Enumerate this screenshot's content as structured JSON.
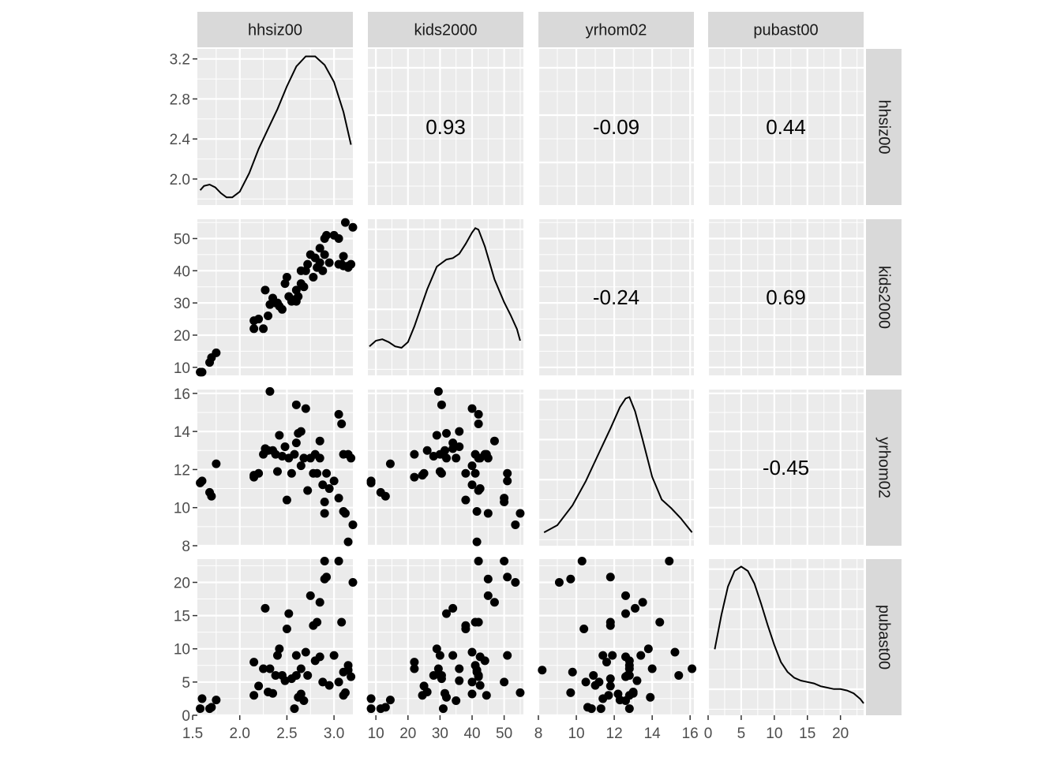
{
  "chart_data": {
    "type": "scatter",
    "layout": "pairs-matrix",
    "variables": [
      "hhsiz00",
      "kids2000",
      "yrhom02",
      "pubast00"
    ],
    "axes": {
      "hhsiz00": {
        "lim": [
          1.55,
          3.2
        ],
        "ticks": [
          1.5,
          2.0,
          2.5,
          3.0
        ],
        "tick_labels": [
          "1.5",
          "2.0",
          "2.5",
          "3.0"
        ]
      },
      "kids2000": {
        "lim": [
          7.5,
          56
        ],
        "ticks": [
          10,
          20,
          30,
          40,
          50
        ],
        "tick_labels": [
          "10",
          "20",
          "30",
          "40",
          "50"
        ]
      },
      "yrhom02": {
        "lim": [
          8,
          16.2
        ],
        "ticks": [
          8,
          10,
          12,
          14,
          16
        ],
        "tick_labels": [
          "8",
          "10",
          "12",
          "14",
          "16"
        ]
      },
      "pubast00": {
        "lim": [
          0,
          23.5
        ],
        "ticks": [
          0,
          5,
          10,
          15,
          20
        ],
        "tick_labels": [
          "0",
          "5",
          "10",
          "15",
          "20"
        ]
      }
    },
    "diag_y_axis": {
      "lim": [
        1.74,
        3.3
      ],
      "ticks": [
        2.0,
        2.4,
        2.8,
        3.2
      ],
      "tick_labels": [
        "2.0",
        "2.4",
        "2.8",
        "3.2"
      ]
    },
    "correlations": [
      {
        "row": "hhsiz00",
        "col": "kids2000",
        "label": "0.93"
      },
      {
        "row": "hhsiz00",
        "col": "yrhom02",
        "label": "-0.09"
      },
      {
        "row": "hhsiz00",
        "col": "pubast00",
        "label": "0.44"
      },
      {
        "row": "kids2000",
        "col": "yrhom02",
        "label": "-0.24"
      },
      {
        "row": "kids2000",
        "col": "pubast00",
        "label": "0.69"
      },
      {
        "row": "yrhom02",
        "col": "pubast00",
        "label": "-0.45"
      }
    ],
    "densities": {
      "hhsiz00": [
        [
          1.58,
          0.06
        ],
        [
          1.62,
          0.09
        ],
        [
          1.68,
          0.1
        ],
        [
          1.74,
          0.08
        ],
        [
          1.8,
          0.04
        ],
        [
          1.86,
          0.01
        ],
        [
          1.92,
          0.01
        ],
        [
          2.0,
          0.05
        ],
        [
          2.1,
          0.18
        ],
        [
          2.2,
          0.35
        ],
        [
          2.3,
          0.49
        ],
        [
          2.4,
          0.63
        ],
        [
          2.5,
          0.79
        ],
        [
          2.6,
          0.93
        ],
        [
          2.7,
          1.0
        ],
        [
          2.8,
          1.0
        ],
        [
          2.9,
          0.94
        ],
        [
          3.0,
          0.82
        ],
        [
          3.1,
          0.61
        ],
        [
          3.18,
          0.38
        ]
      ],
      "kids2000": [
        [
          8,
          0.16
        ],
        [
          10,
          0.2
        ],
        [
          12,
          0.21
        ],
        [
          14,
          0.19
        ],
        [
          16,
          0.16
        ],
        [
          18,
          0.15
        ],
        [
          20,
          0.19
        ],
        [
          22,
          0.3
        ],
        [
          26,
          0.56
        ],
        [
          29,
          0.72
        ],
        [
          32,
          0.77
        ],
        [
          34,
          0.78
        ],
        [
          36,
          0.81
        ],
        [
          38,
          0.88
        ],
        [
          40,
          0.96
        ],
        [
          41,
          0.99
        ],
        [
          42,
          0.98
        ],
        [
          44,
          0.86
        ],
        [
          47,
          0.63
        ],
        [
          50,
          0.47
        ],
        [
          52,
          0.38
        ],
        [
          54,
          0.28
        ],
        [
          55,
          0.2
        ]
      ],
      "yrhom02": [
        [
          8.3,
          0.05
        ],
        [
          9,
          0.1
        ],
        [
          9.8,
          0.24
        ],
        [
          10.5,
          0.41
        ],
        [
          11.2,
          0.61
        ],
        [
          11.8,
          0.78
        ],
        [
          12.3,
          0.93
        ],
        [
          12.6,
          0.99
        ],
        [
          12.8,
          1.0
        ],
        [
          13.1,
          0.9
        ],
        [
          13.5,
          0.7
        ],
        [
          14.0,
          0.44
        ],
        [
          14.5,
          0.28
        ],
        [
          15.0,
          0.22
        ],
        [
          15.5,
          0.15
        ],
        [
          16.1,
          0.05
        ]
      ],
      "pubast00": [
        [
          1,
          0.42
        ],
        [
          2,
          0.66
        ],
        [
          3,
          0.86
        ],
        [
          4,
          0.97
        ],
        [
          5,
          1.0
        ],
        [
          6,
          0.97
        ],
        [
          7,
          0.88
        ],
        [
          8,
          0.74
        ],
        [
          9,
          0.59
        ],
        [
          10,
          0.45
        ],
        [
          11,
          0.33
        ],
        [
          12,
          0.26
        ],
        [
          13,
          0.22
        ],
        [
          14,
          0.2
        ],
        [
          15,
          0.19
        ],
        [
          16,
          0.18
        ],
        [
          17,
          0.16
        ],
        [
          18,
          0.15
        ],
        [
          19,
          0.14
        ],
        [
          20,
          0.14
        ],
        [
          21,
          0.13
        ],
        [
          22,
          0.11
        ],
        [
          23,
          0.07
        ],
        [
          23.5,
          0.04
        ]
      ]
    },
    "records": [
      [
        1.58,
        8.5,
        11.3,
        1.0
      ],
      [
        1.6,
        8.5,
        11.4,
        2.5
      ],
      [
        1.68,
        11.5,
        10.8,
        1.0
      ],
      [
        1.7,
        13.0,
        10.6,
        1.2
      ],
      [
        1.75,
        14.5,
        12.3,
        2.3
      ],
      [
        2.15,
        24.5,
        11.7,
        3.0
      ],
      [
        2.15,
        22.0,
        11.6,
        8.0
      ],
      [
        2.2,
        25.0,
        11.8,
        4.4
      ],
      [
        2.25,
        22.0,
        12.8,
        7.0
      ],
      [
        2.27,
        34.0,
        13.1,
        16.1
      ],
      [
        2.3,
        26.0,
        13.0,
        3.5
      ],
      [
        2.32,
        29.5,
        16.1,
        7.0
      ],
      [
        2.35,
        31.5,
        13.0,
        3.3
      ],
      [
        2.38,
        30.0,
        12.8,
        6.0
      ],
      [
        2.4,
        30.0,
        11.9,
        9.0
      ],
      [
        2.42,
        29.0,
        13.8,
        10.0
      ],
      [
        2.45,
        28.0,
        12.7,
        6.0
      ],
      [
        2.48,
        36.0,
        13.2,
        5.2
      ],
      [
        2.5,
        38.0,
        10.4,
        13.0
      ],
      [
        2.52,
        32.0,
        12.6,
        15.3
      ],
      [
        2.55,
        30.5,
        11.8,
        5.5
      ],
      [
        2.58,
        31.0,
        12.8,
        1.0
      ],
      [
        2.6,
        30.5,
        15.4,
        6.0
      ],
      [
        2.6,
        34.0,
        13.4,
        9.0
      ],
      [
        2.62,
        32.0,
        13.9,
        2.7
      ],
      [
        2.65,
        40.0,
        12.2,
        3.2
      ],
      [
        2.65,
        36.0,
        14.0,
        7.0
      ],
      [
        2.68,
        35.0,
        12.6,
        2.2
      ],
      [
        2.7,
        40.0,
        15.2,
        9.5
      ],
      [
        2.72,
        42.0,
        10.9,
        6.0
      ],
      [
        2.75,
        45.0,
        12.6,
        18.0
      ],
      [
        2.78,
        38.0,
        11.8,
        13.5
      ],
      [
        2.8,
        44.0,
        12.8,
        8.2
      ],
      [
        2.82,
        41.0,
        11.8,
        14.0
      ],
      [
        2.85,
        42.5,
        12.6,
        8.8
      ],
      [
        2.85,
        47.0,
        13.5,
        17.0
      ],
      [
        2.88,
        40.0,
        11.2,
        5.0
      ],
      [
        2.9,
        50.0,
        10.3,
        23.2
      ],
      [
        2.9,
        45.0,
        9.7,
        20.5
      ],
      [
        2.92,
        51.0,
        11.8,
        20.8
      ],
      [
        2.95,
        42.5,
        11.0,
        4.5
      ],
      [
        3.0,
        51.0,
        11.4,
        9.0
      ],
      [
        3.05,
        50.0,
        10.5,
        5.0
      ],
      [
        3.05,
        42.0,
        14.9,
        23.2
      ],
      [
        3.08,
        42.0,
        14.4,
        14.0
      ],
      [
        3.1,
        44.5,
        12.8,
        3.0
      ],
      [
        3.1,
        41.5,
        9.8,
        6.5
      ],
      [
        3.12,
        55.0,
        9.7,
        3.4
      ],
      [
        3.15,
        41.0,
        12.8,
        7.5
      ],
      [
        3.18,
        42.0,
        12.6,
        5.8
      ],
      [
        3.2,
        53.5,
        9.1,
        20.0
      ],
      [
        3.15,
        41.5,
        8.2,
        6.8
      ]
    ]
  }
}
